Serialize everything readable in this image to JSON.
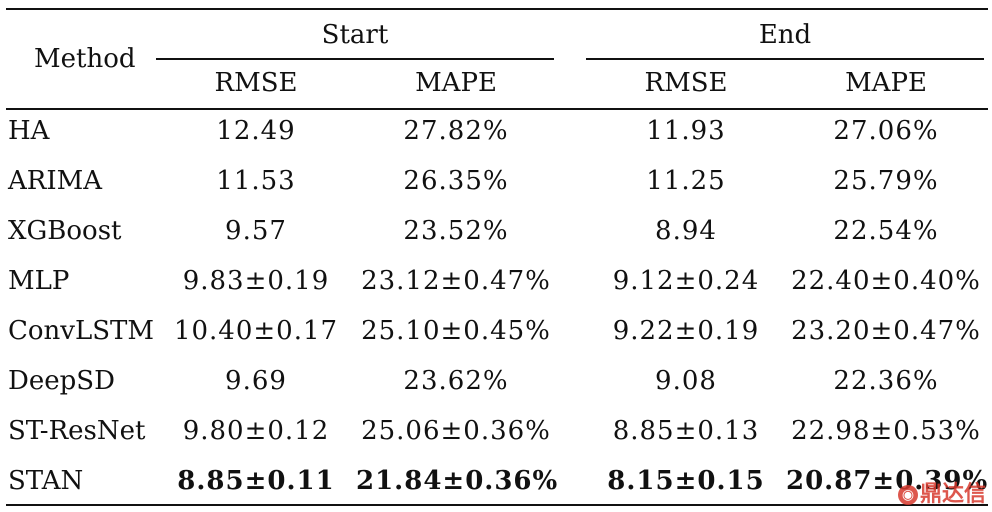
{
  "header": {
    "method": "Method",
    "group_start": "Start",
    "group_end": "End",
    "rmse": "RMSE",
    "mape": "MAPE"
  },
  "rows": [
    {
      "method": "HA",
      "start_rmse": "12.49",
      "start_mape": "27.82%",
      "end_rmse": "11.93",
      "end_mape": "27.06%"
    },
    {
      "method": "ARIMA",
      "start_rmse": "11.53",
      "start_mape": "26.35%",
      "end_rmse": "11.25",
      "end_mape": "25.79%"
    },
    {
      "method": "XGBoost",
      "start_rmse": "9.57",
      "start_mape": "23.52%",
      "end_rmse": "8.94",
      "end_mape": "22.54%"
    },
    {
      "method": "MLP",
      "start_rmse": "9.83±0.19",
      "start_mape": "23.12±0.47%",
      "end_rmse": "9.12±0.24",
      "end_mape": "22.40±0.40%"
    },
    {
      "method": "ConvLSTM",
      "start_rmse": "10.40±0.17",
      "start_mape": "25.10±0.45%",
      "end_rmse": "9.22±0.19",
      "end_mape": "23.20±0.47%"
    },
    {
      "method": "DeepSD",
      "start_rmse": "9.69",
      "start_mape": "23.62%",
      "end_rmse": "9.08",
      "end_mape": "22.36%"
    },
    {
      "method": "ST-ResNet",
      "start_rmse": "9.80±0.12",
      "start_mape": "25.06±0.36%",
      "end_rmse": "8.85±0.13",
      "end_mape": "22.98±0.53%"
    },
    {
      "method": "STAN",
      "start_rmse": "8.85±0.11",
      "start_mape": "21.84±0.36%",
      "end_rmse": "8.15±0.15",
      "end_mape": "20.87±0.39%"
    }
  ],
  "watermark": {
    "text": "鼎达信"
  }
}
